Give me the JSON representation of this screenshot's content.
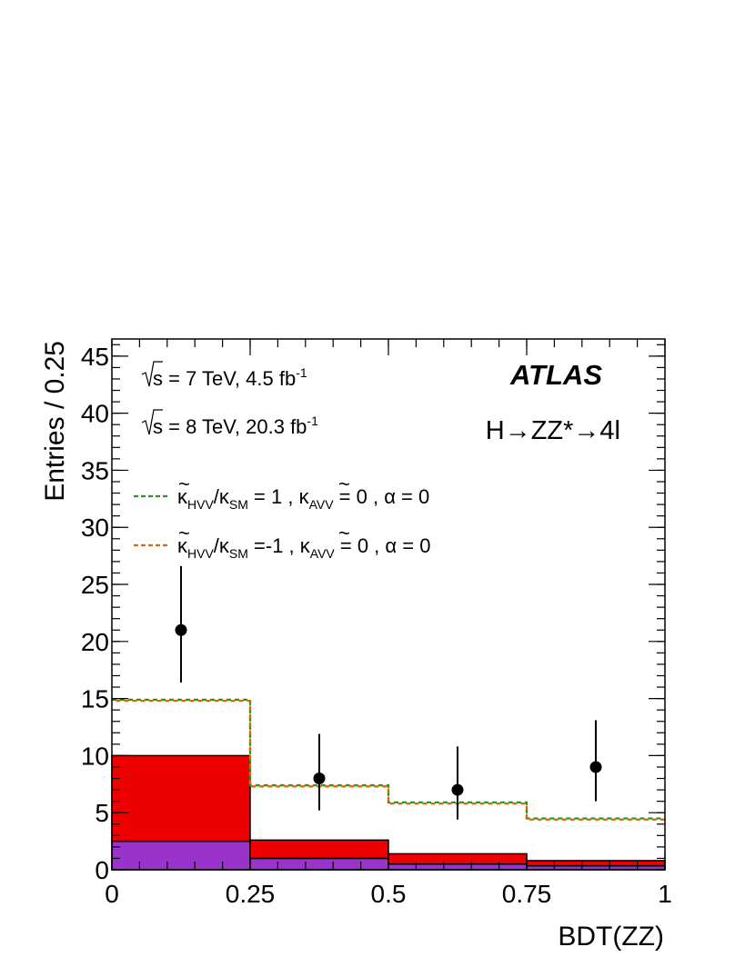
{
  "chart_data": {
    "type": "bar",
    "xlabel": "BDT(ZZ)",
    "ylabel": "Entries / 0.25",
    "xlim": [
      0,
      1
    ],
    "ylim": [
      0,
      46.5
    ],
    "x_ticks": [
      "0",
      "0.25",
      "0.5",
      "0.75",
      "1"
    ],
    "y_ticks": [
      "0",
      "5",
      "10",
      "15",
      "20",
      "25",
      "30",
      "35",
      "40",
      "45"
    ],
    "bin_edges": [
      0,
      0.25,
      0.5,
      0.75,
      1.0
    ],
    "stack": [
      {
        "name": "",
        "color": "#9933cc",
        "values": [
          2.5,
          1.0,
          0.5,
          0.35
        ]
      },
      {
        "name": "",
        "color": "#ee0000",
        "values": [
          7.5,
          1.6,
          0.9,
          0.45
        ]
      }
    ],
    "lines": [
      {
        "color": "#229922",
        "style": "dashed",
        "values": [
          14.9,
          7.4,
          5.9,
          4.5
        ]
      },
      {
        "color": "#dd6600",
        "style": "dashed",
        "values": [
          14.8,
          7.3,
          5.8,
          4.4
        ]
      }
    ],
    "data_points": {
      "x": [
        0.125,
        0.375,
        0.625,
        0.875
      ],
      "y": [
        21,
        8,
        7,
        9
      ],
      "err_up": [
        5.6,
        3.9,
        3.8,
        4.1
      ],
      "err_down": [
        4.6,
        2.8,
        2.6,
        3.0
      ]
    },
    "annotations": {
      "energy1_pre": "s = 7 TeV, 4.5 fb",
      "energy1_sup": "-1",
      "energy2_pre": "s = 8 TeV, 20.3 fb",
      "energy2_sup": "-1",
      "atlas": "ATLAS",
      "process": "H→ZZ*→4l"
    },
    "legend": [
      {
        "color": "#229922",
        "kappa": "κ",
        "hvv_sub": "HVV",
        "slash": "/κ",
        "sm_sub": "SM",
        "mid": " = 1 , ",
        "kappa2": "κ",
        "avv_sub": "AVV",
        "tail": " = 0 , α = 0"
      },
      {
        "color": "#dd6600",
        "kappa": "κ",
        "hvv_sub": "HVV",
        "slash": "/κ",
        "sm_sub": "SM",
        "mid": " =-1 , ",
        "kappa2": "κ",
        "avv_sub": "AVV",
        "tail": " = 0 , α = 0"
      }
    ]
  }
}
